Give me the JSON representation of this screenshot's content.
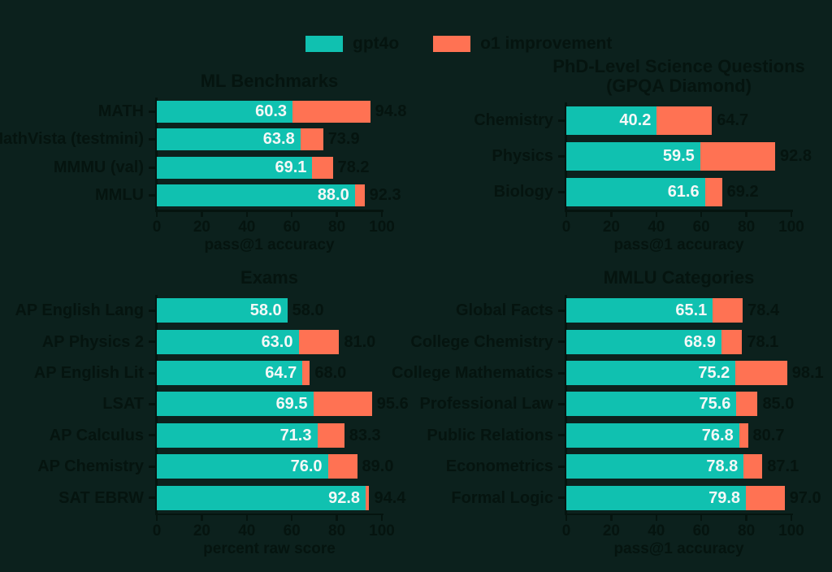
{
  "page": {
    "background": "#0c211d"
  },
  "colors": {
    "teal": "#10c1b0",
    "orange": "#ff7253",
    "text_dark": "#05140f",
    "text_light": "#f5f8f7",
    "background": "#0c211d"
  },
  "legend": {
    "items": [
      {
        "label": "gpt4o",
        "color": "#10c1b0"
      },
      {
        "label": "o1 improvement",
        "color": "#ff7253"
      }
    ]
  },
  "chart_data": [
    {
      "type": "bar",
      "orientation": "horizontal",
      "title": "ML Benchmarks",
      "subtitle": "",
      "xlabel": "pass@1 accuracy",
      "xlim": [
        0,
        100
      ],
      "xticks": [
        0,
        20,
        40,
        60,
        80,
        100
      ],
      "grid": false,
      "legend_position": "top-center",
      "categories": [
        "MATH",
        "MathVista (testmini)",
        "MMMU (val)",
        "MMLU"
      ],
      "series": [
        {
          "name": "gpt4o",
          "values": [
            60.3,
            63.8,
            69.1,
            88.0
          ]
        },
        {
          "name": "o1",
          "values": [
            94.8,
            73.9,
            78.2,
            92.3
          ]
        }
      ]
    },
    {
      "type": "bar",
      "orientation": "horizontal",
      "title": "PhD-Level Science Questions",
      "subtitle": "(GPQA Diamond)",
      "xlabel": "pass@1 accuracy",
      "xlim": [
        0,
        100
      ],
      "xticks": [
        0,
        20,
        40,
        60,
        80,
        100
      ],
      "grid": false,
      "categories": [
        "Chemistry",
        "Physics",
        "Biology"
      ],
      "series": [
        {
          "name": "gpt4o",
          "values": [
            40.2,
            59.5,
            61.6
          ]
        },
        {
          "name": "o1",
          "values": [
            64.7,
            92.8,
            69.2
          ]
        }
      ]
    },
    {
      "type": "bar",
      "orientation": "horizontal",
      "title": "Exams",
      "subtitle": "",
      "xlabel": "percent raw score",
      "xlim": [
        0,
        100
      ],
      "xticks": [
        0,
        20,
        40,
        60,
        80,
        100
      ],
      "grid": false,
      "categories": [
        "AP English Lang",
        "AP Physics 2",
        "AP English Lit",
        "LSAT",
        "AP Calculus",
        "AP Chemistry",
        "SAT EBRW"
      ],
      "series": [
        {
          "name": "gpt4o",
          "values": [
            58.0,
            63.0,
            64.7,
            69.5,
            71.3,
            76.0,
            92.8
          ]
        },
        {
          "name": "o1",
          "values": [
            58.0,
            81.0,
            68.0,
            95.6,
            83.3,
            89.0,
            94.4
          ]
        }
      ]
    },
    {
      "type": "bar",
      "orientation": "horizontal",
      "title": "MMLU Categories",
      "subtitle": "",
      "xlabel": "pass@1 accuracy",
      "xlim": [
        0,
        100
      ],
      "xticks": [
        0,
        20,
        40,
        60,
        80,
        100
      ],
      "grid": false,
      "categories": [
        "Global Facts",
        "College Chemistry",
        "College Mathematics",
        "Professional Law",
        "Public Relations",
        "Econometrics",
        "Formal Logic"
      ],
      "series": [
        {
          "name": "gpt4o",
          "values": [
            65.1,
            68.9,
            75.2,
            75.6,
            76.8,
            78.8,
            79.8
          ]
        },
        {
          "name": "o1",
          "values": [
            78.4,
            78.1,
            98.1,
            85.0,
            80.7,
            87.1,
            97.0
          ]
        }
      ]
    }
  ]
}
